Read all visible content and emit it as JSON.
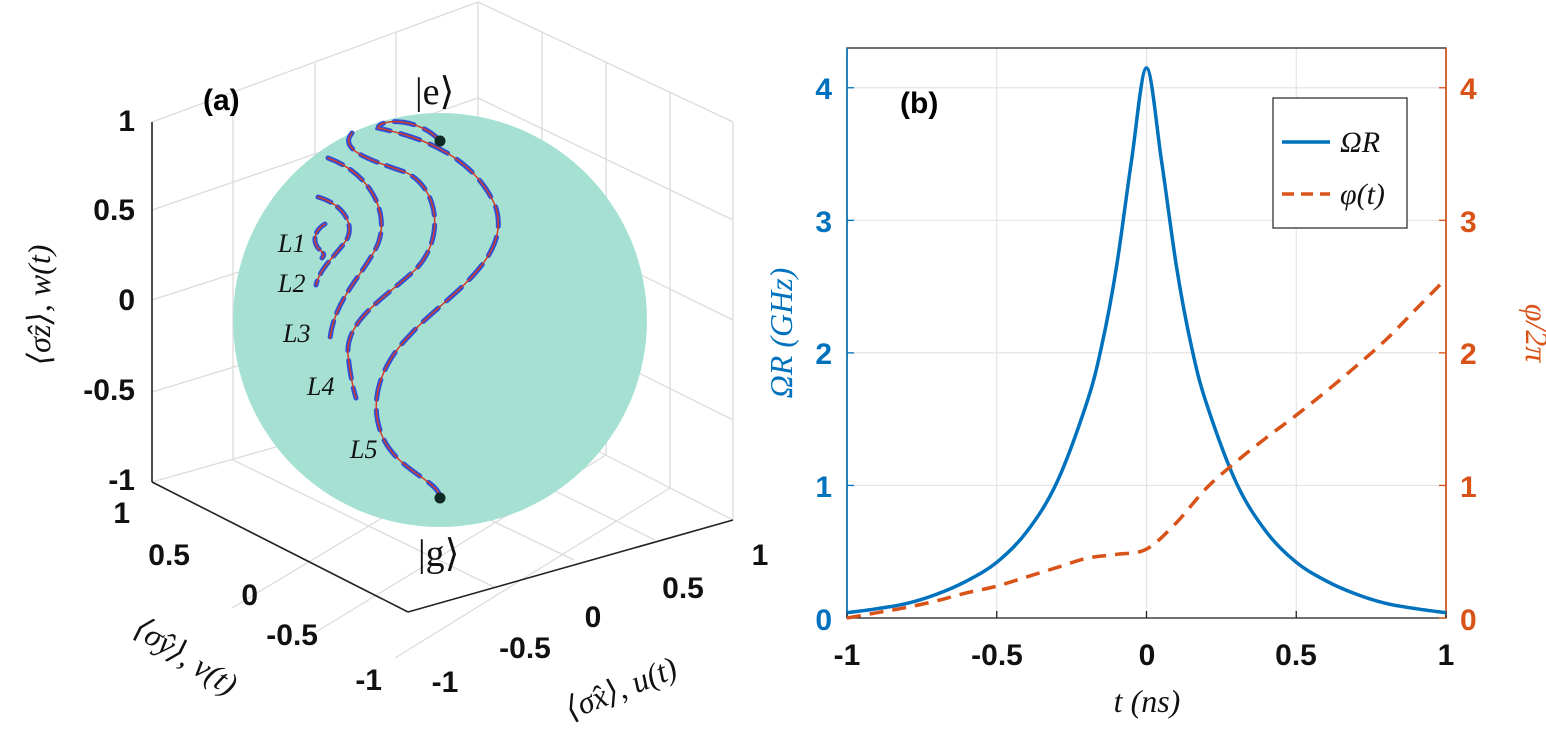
{
  "figure": {
    "panel_a": {
      "label": "(a)",
      "state_e": "|e⟩",
      "state_g": "|g⟩",
      "z_axis_label": "⟨σ̂z⟩, w(t)",
      "y_axis_label": "⟨σ̂y⟩, v(t)",
      "x_axis_label": "⟨σ̂x⟩, u(t)",
      "z_ticks": [
        "1",
        "0.5",
        "0",
        "-0.5",
        "-1"
      ],
      "y_ticks": [
        "1",
        "0.5",
        "0",
        "-0.5",
        "-1"
      ],
      "x_ticks": [
        "-1",
        "-0.5",
        "0",
        "0.5",
        "1"
      ],
      "curve_labels": [
        "L1",
        "L2",
        "L3",
        "L4",
        "L5"
      ],
      "sphere_color": "#a6e0d3",
      "trajectory_color": "#d23a2a",
      "dash_color": "#2f4fd6"
    },
    "panel_b": {
      "label": "(b)",
      "xlabel": "t (ns)",
      "ylabel_left": "ΩR (GHz)",
      "ylabel_right": "φ/2π",
      "x_ticks": [
        "-1",
        "-0.5",
        "0",
        "0.5",
        "1"
      ],
      "y_left_ticks": [
        "0",
        "1",
        "2",
        "3",
        "4"
      ],
      "y_right_ticks": [
        "0",
        "1",
        "2",
        "3",
        "4"
      ],
      "legend": [
        "ΩR",
        "φ(t)"
      ],
      "left_color": "#0072bd",
      "right_color": "#d95319"
    }
  },
  "chart_data": [
    {
      "type": "line",
      "title": "(b)",
      "xlabel": "t (ns)",
      "ylabel": "ΩR (GHz)",
      "ylabel_right": "φ/2π",
      "xlim": [
        -1,
        1
      ],
      "ylim": [
        0,
        4.3
      ],
      "ylim_right": [
        0,
        4.3
      ],
      "legend_position": "top-right",
      "series": [
        {
          "name": "ΩR",
          "axis": "left",
          "style": "solid",
          "x": [
            -1,
            -0.9,
            -0.8,
            -0.7,
            -0.6,
            -0.5,
            -0.4,
            -0.3,
            -0.2,
            -0.15,
            -0.1,
            -0.05,
            0,
            0.05,
            0.1,
            0.15,
            0.2,
            0.3,
            0.4,
            0.5,
            0.6,
            0.7,
            0.8,
            0.9,
            1
          ],
          "values": [
            0.04,
            0.07,
            0.11,
            0.18,
            0.28,
            0.42,
            0.65,
            1.02,
            1.62,
            2.05,
            2.65,
            3.45,
            4.15,
            3.45,
            2.65,
            2.05,
            1.62,
            1.02,
            0.65,
            0.42,
            0.28,
            0.18,
            0.11,
            0.07,
            0.04
          ]
        },
        {
          "name": "φ(t)",
          "axis": "right",
          "style": "dashed",
          "x": [
            -1,
            -0.9,
            -0.8,
            -0.7,
            -0.6,
            -0.5,
            -0.4,
            -0.3,
            -0.2,
            -0.1,
            0,
            0.1,
            0.2,
            0.3,
            0.4,
            0.5,
            0.6,
            0.7,
            0.8,
            0.9,
            1
          ],
          "values": [
            0.0,
            0.04,
            0.08,
            0.13,
            0.19,
            0.24,
            0.31,
            0.38,
            0.45,
            0.48,
            0.52,
            0.72,
            0.98,
            1.18,
            1.36,
            1.53,
            1.71,
            1.9,
            2.1,
            2.33,
            2.56
          ]
        }
      ]
    }
  ]
}
